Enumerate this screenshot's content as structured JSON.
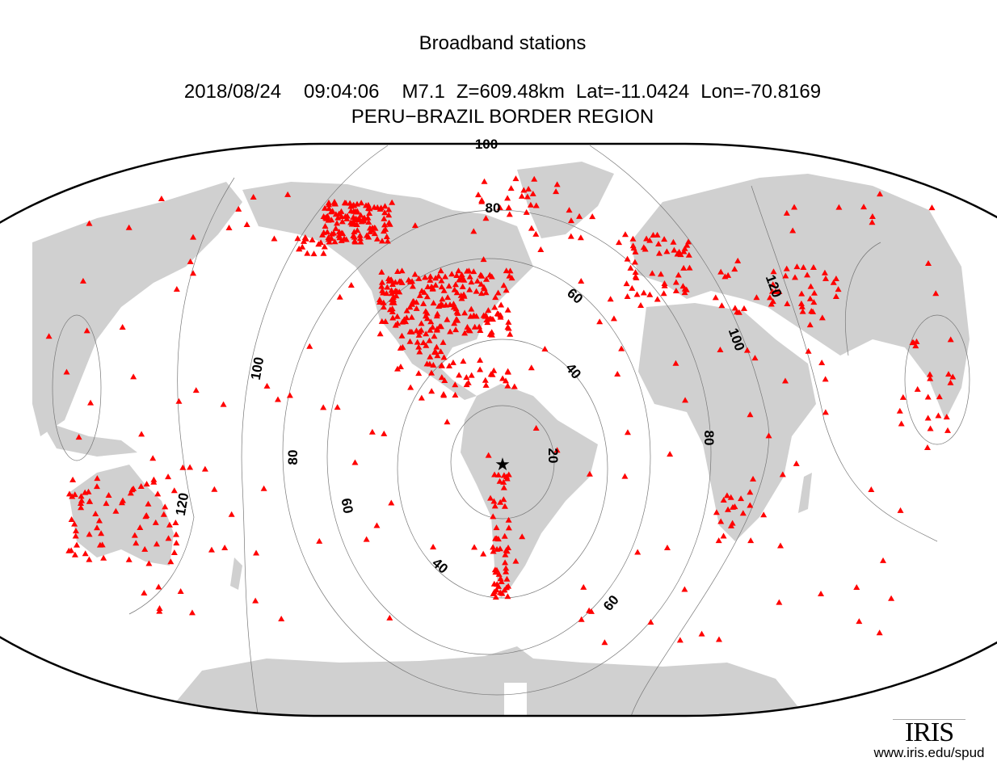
{
  "title": "Broadband stations",
  "event": {
    "date": "2018/08/24",
    "time": "09:04:06",
    "magnitude": "M7.1",
    "depth": "Z=609.48km",
    "lat": "Lat=-11.0424",
    "lon": "Lon=-70.8169",
    "info_line": "2018/08/24    09:04:06    M7.1  Z=609.48km  Lat=−11.0424  Lon=−70.8169",
    "region": "PERU−BRAZIL BORDER REGION"
  },
  "map": {
    "projection": "Winkel-style world ellipse centered on epicenter longitude",
    "land_color": "#d0d0d0",
    "station_color": "#ff0000",
    "station_symbol": "triangle",
    "epicenter_symbol": "star",
    "distance_contours_deg": [
      20,
      40,
      60,
      80,
      100,
      120
    ],
    "contour_labels": [
      "20",
      "40",
      "40",
      "60",
      "60",
      "60",
      "80",
      "80",
      "80",
      "100",
      "100",
      "100",
      "120",
      "120"
    ]
  },
  "logo": {
    "word": "IRIS",
    "url": "www.iris.edu/spud"
  }
}
